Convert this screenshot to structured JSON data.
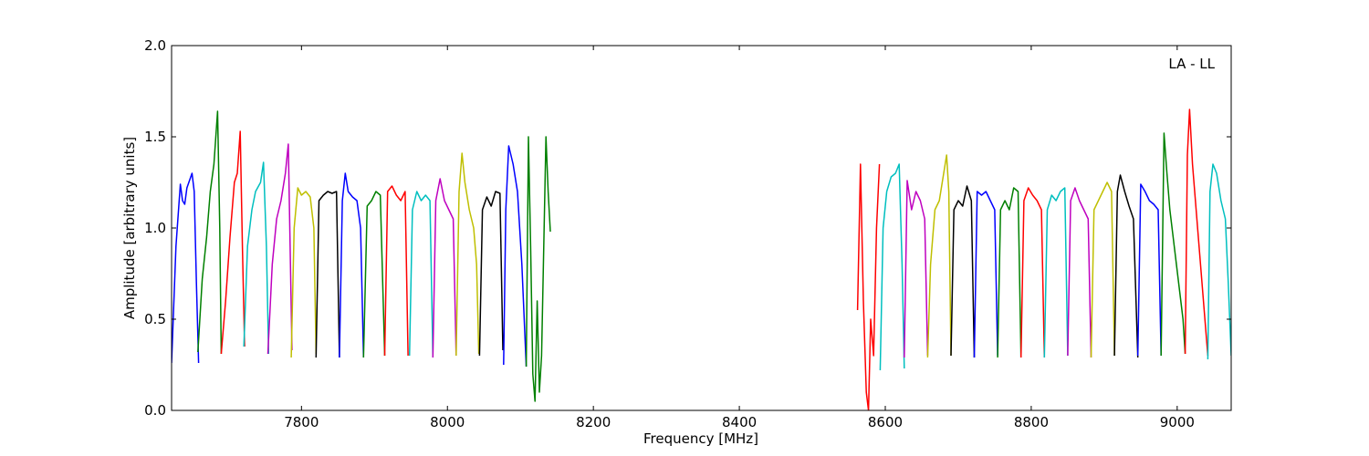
{
  "chart_data": {
    "type": "line",
    "title": "",
    "xlabel": "Frequency [MHz]",
    "ylabel": "Amplitude [arbitrary units]",
    "annotation": "LA - LL",
    "xlim": [
      7622,
      9074
    ],
    "ylim": [
      0.0,
      2.0
    ],
    "xticks": [
      7800,
      8000,
      8200,
      8400,
      8600,
      8800,
      9000
    ],
    "yticks": [
      0.0,
      0.5,
      1.0,
      1.5,
      2.0
    ],
    "ytick_labels": [
      "0.0",
      "0.5",
      "1.0",
      "1.5",
      "2.0"
    ],
    "grid": false,
    "legend": "none",
    "series": [
      {
        "color": "#0000ff",
        "x": [
          7622,
          7628,
          7634,
          7637,
          7640,
          7643,
          7650,
          7653,
          7656,
          7659
        ],
        "y": [
          0.26,
          0.9,
          1.24,
          1.15,
          1.13,
          1.22,
          1.3,
          1.2,
          0.7,
          0.26
        ]
      },
      {
        "color": "#008000",
        "x": [
          7658,
          7664,
          7670,
          7675,
          7680,
          7685,
          7688,
          7690
        ],
        "y": [
          0.32,
          0.72,
          0.95,
          1.2,
          1.35,
          1.64,
          1.0,
          0.31
        ]
      },
      {
        "color": "#ff0000",
        "x": [
          7690,
          7696,
          7702,
          7708,
          7712,
          7716,
          7719,
          7722
        ],
        "y": [
          0.31,
          0.6,
          0.95,
          1.25,
          1.3,
          1.53,
          0.9,
          0.35
        ]
      },
      {
        "color": "#00bfbf",
        "x": [
          7721,
          7726,
          7732,
          7737,
          7744,
          7748,
          7752,
          7755
        ],
        "y": [
          0.35,
          0.9,
          1.1,
          1.2,
          1.25,
          1.36,
          0.9,
          0.31
        ]
      },
      {
        "color": "#bf00bf",
        "x": [
          7754,
          7760,
          7766,
          7772,
          7778,
          7782,
          7787
        ],
        "y": [
          0.31,
          0.8,
          1.05,
          1.15,
          1.3,
          1.46,
          0.33
        ]
      },
      {
        "color": "#bfbf00",
        "x": [
          7786,
          7790,
          7795,
          7800,
          7806,
          7812,
          7817,
          7820
        ],
        "y": [
          0.29,
          1.0,
          1.22,
          1.18,
          1.2,
          1.17,
          1.0,
          0.31
        ]
      },
      {
        "color": "#000000",
        "x": [
          7820,
          7824,
          7830,
          7836,
          7842,
          7848,
          7852
        ],
        "y": [
          0.29,
          1.15,
          1.18,
          1.2,
          1.19,
          1.2,
          0.29
        ]
      },
      {
        "color": "#0000ff",
        "x": [
          7852,
          7856,
          7860,
          7864,
          7870,
          7876,
          7881,
          7885
        ],
        "y": [
          0.29,
          1.15,
          1.3,
          1.2,
          1.17,
          1.15,
          1.0,
          0.29
        ]
      },
      {
        "color": "#008000",
        "x": [
          7885,
          7890,
          7896,
          7902,
          7908,
          7914
        ],
        "y": [
          0.29,
          1.12,
          1.15,
          1.2,
          1.18,
          0.3
        ]
      },
      {
        "color": "#ff0000",
        "x": [
          7914,
          7918,
          7924,
          7930,
          7936,
          7942,
          7946
        ],
        "y": [
          0.3,
          1.2,
          1.23,
          1.18,
          1.15,
          1.2,
          0.3
        ]
      },
      {
        "color": "#00bfbf",
        "x": [
          7948,
          7952,
          7958,
          7964,
          7970,
          7976,
          7980
        ],
        "y": [
          0.3,
          1.1,
          1.2,
          1.15,
          1.18,
          1.15,
          0.29
        ]
      },
      {
        "color": "#bf00bf",
        "x": [
          7980,
          7984,
          7990,
          7996,
          8002,
          8008,
          8012
        ],
        "y": [
          0.29,
          1.15,
          1.27,
          1.15,
          1.1,
          1.05,
          0.3
        ]
      },
      {
        "color": "#bfbf00",
        "x": [
          8012,
          8016,
          8020,
          8024,
          8030,
          8036,
          8040,
          8043
        ],
        "y": [
          0.3,
          1.2,
          1.41,
          1.25,
          1.1,
          1.0,
          0.8,
          0.31
        ]
      },
      {
        "color": "#000000",
        "x": [
          8044,
          8048,
          8054,
          8060,
          8066,
          8072,
          8076
        ],
        "y": [
          0.3,
          1.1,
          1.17,
          1.12,
          1.2,
          1.19,
          0.33
        ]
      },
      {
        "color": "#0000ff",
        "x": [
          8077,
          8080,
          8084,
          8090,
          8096,
          8102,
          8108
        ],
        "y": [
          0.25,
          1.1,
          1.45,
          1.35,
          1.2,
          0.8,
          0.24
        ]
      },
      {
        "color": "#008000",
        "x": [
          8108,
          8111,
          8114,
          8117,
          8120,
          8123,
          8126,
          8129,
          8132,
          8135,
          8138,
          8141
        ],
        "y": [
          0.24,
          1.5,
          0.9,
          0.2,
          0.05,
          0.6,
          0.1,
          0.3,
          0.9,
          1.5,
          1.2,
          0.98
        ]
      },
      {
        "color": "#ff0000",
        "x": [
          8562,
          8566,
          8570,
          8574,
          8577,
          8580,
          8584,
          8588,
          8592
        ],
        "y": [
          0.55,
          1.35,
          0.6,
          0.1,
          0.0,
          0.5,
          0.3,
          1.0,
          1.35
        ]
      },
      {
        "color": "#00bfbf",
        "x": [
          8593,
          8597,
          8602,
          8608,
          8614,
          8619,
          8623,
          8626
        ],
        "y": [
          0.22,
          1.0,
          1.2,
          1.28,
          1.3,
          1.35,
          0.8,
          0.23
        ]
      },
      {
        "color": "#bf00bf",
        "x": [
          8626,
          8630,
          8636,
          8642,
          8648,
          8654,
          8658
        ],
        "y": [
          0.29,
          1.26,
          1.1,
          1.2,
          1.15,
          1.05,
          0.3
        ]
      },
      {
        "color": "#bfbf00",
        "x": [
          8658,
          8662,
          8668,
          8674,
          8680,
          8684,
          8687,
          8690
        ],
        "y": [
          0.29,
          0.8,
          1.1,
          1.15,
          1.3,
          1.4,
          1.2,
          0.3
        ]
      },
      {
        "color": "#000000",
        "x": [
          8690,
          8694,
          8700,
          8706,
          8712,
          8718,
          8722
        ],
        "y": [
          0.3,
          1.1,
          1.15,
          1.12,
          1.23,
          1.15,
          0.29
        ]
      },
      {
        "color": "#0000ff",
        "x": [
          8722,
          8726,
          8732,
          8738,
          8744,
          8750,
          8754
        ],
        "y": [
          0.29,
          1.2,
          1.18,
          1.2,
          1.15,
          1.1,
          0.3
        ]
      },
      {
        "color": "#008000",
        "x": [
          8754,
          8758,
          8764,
          8770,
          8776,
          8782,
          8786
        ],
        "y": [
          0.29,
          1.1,
          1.15,
          1.1,
          1.22,
          1.2,
          0.29
        ]
      },
      {
        "color": "#ff0000",
        "x": [
          8786,
          8790,
          8796,
          8802,
          8808,
          8814,
          8818
        ],
        "y": [
          0.29,
          1.15,
          1.22,
          1.18,
          1.15,
          1.1,
          0.29
        ]
      },
      {
        "color": "#00bfbf",
        "x": [
          8818,
          8822,
          8828,
          8834,
          8840,
          8846,
          8850
        ],
        "y": [
          0.29,
          1.1,
          1.18,
          1.15,
          1.2,
          1.22,
          0.3
        ]
      },
      {
        "color": "#bf00bf",
        "x": [
          8850,
          8854,
          8860,
          8866,
          8872,
          8878,
          8882
        ],
        "y": [
          0.3,
          1.15,
          1.22,
          1.15,
          1.1,
          1.05,
          0.29
        ]
      },
      {
        "color": "#bfbf00",
        "x": [
          8882,
          8886,
          8892,
          8898,
          8904,
          8910,
          8914
        ],
        "y": [
          0.29,
          1.1,
          1.15,
          1.2,
          1.25,
          1.2,
          0.3
        ]
      },
      {
        "color": "#000000",
        "x": [
          8914,
          8918,
          8922,
          8928,
          8934,
          8940,
          8946
        ],
        "y": [
          0.3,
          1.2,
          1.29,
          1.2,
          1.12,
          1.05,
          0.29
        ]
      },
      {
        "color": "#0000ff",
        "x": [
          8946,
          8950,
          8956,
          8962,
          8968,
          8974,
          8978
        ],
        "y": [
          0.3,
          1.24,
          1.2,
          1.15,
          1.13,
          1.1,
          0.3
        ]
      },
      {
        "color": "#008000",
        "x": [
          8978,
          8982,
          8986,
          8990,
          8996,
          9002,
          9008,
          9011
        ],
        "y": [
          0.3,
          1.52,
          1.3,
          1.1,
          0.9,
          0.7,
          0.5,
          0.31
        ]
      },
      {
        "color": "#ff0000",
        "x": [
          9011,
          9014,
          9017,
          9021,
          9026,
          9032,
          9038,
          9042
        ],
        "y": [
          0.31,
          1.4,
          1.65,
          1.35,
          1.1,
          0.8,
          0.5,
          0.3
        ]
      },
      {
        "color": "#00bfbf",
        "x": [
          9042,
          9045,
          9049,
          9054,
          9060,
          9066,
          9070,
          9074
        ],
        "y": [
          0.28,
          1.2,
          1.35,
          1.3,
          1.15,
          1.05,
          0.7,
          0.3
        ]
      }
    ]
  }
}
